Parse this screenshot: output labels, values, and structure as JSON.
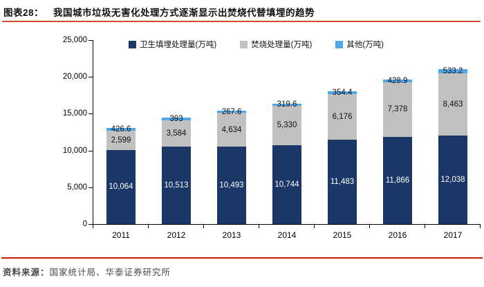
{
  "figure": {
    "label": "图表28：",
    "title": "我国城市垃圾无害化处理方式逐渐显示出焚烧代替填埋的趋势"
  },
  "source": {
    "prefix": "资料来源：",
    "text": "国家统计局、华泰证券研究所"
  },
  "colors": {
    "landfill_bar": "#1a3768",
    "incineration_bar": "#c1c1c1",
    "other_bar": "#4fa8ea",
    "title_rule": "#d04a2e",
    "footer_rule": "#cc1c04",
    "axis": "#000000"
  },
  "chart_data": {
    "type": "bar",
    "stacked": true,
    "title": "我国城市垃圾无害化处理方式逐渐显示出焚烧代替填埋的趋势",
    "xlabel": "",
    "ylabel": "",
    "categories": [
      "2011",
      "2012",
      "2013",
      "2014",
      "2015",
      "2016",
      "2017"
    ],
    "series": [
      {
        "name": "卫生填埋处理量(万吨)",
        "color": "#1a3768",
        "label_color": "#ffffff",
        "values": [
          10064,
          10513,
          10493,
          10744,
          11483,
          11866,
          12038
        ],
        "labels": [
          "10,064",
          "10,513",
          "10,493",
          "10,744",
          "11,483",
          "11,866",
          "12,038"
        ]
      },
      {
        "name": "焚烧处理量(万吨)",
        "color": "#c1c1c1",
        "label_color": "#111111",
        "values": [
          2599,
          3584,
          4634,
          5330,
          6176,
          7378,
          8463
        ],
        "labels": [
          "2,599",
          "3,584",
          "4,634",
          "5,330",
          "6,176",
          "7,378",
          "8,463"
        ]
      },
      {
        "name": "其他(万吨)",
        "color": "#4fa8ea",
        "label_color": "#111111",
        "values": [
          426.6,
          393,
          267.6,
          319.6,
          354.4,
          428.9,
          533.2
        ],
        "labels": [
          "426.6",
          "393",
          "267.6",
          "319.6",
          "354.4",
          "428.9",
          "533.2"
        ]
      }
    ],
    "ylim": [
      0,
      25000
    ],
    "ytick_values": [
      0,
      5000,
      10000,
      15000,
      20000,
      25000
    ],
    "ytick_labels": [
      "0",
      "5,000",
      "10,000",
      "15,000",
      "20,000",
      "25,000"
    ],
    "legend_position": "top",
    "grid": false
  }
}
